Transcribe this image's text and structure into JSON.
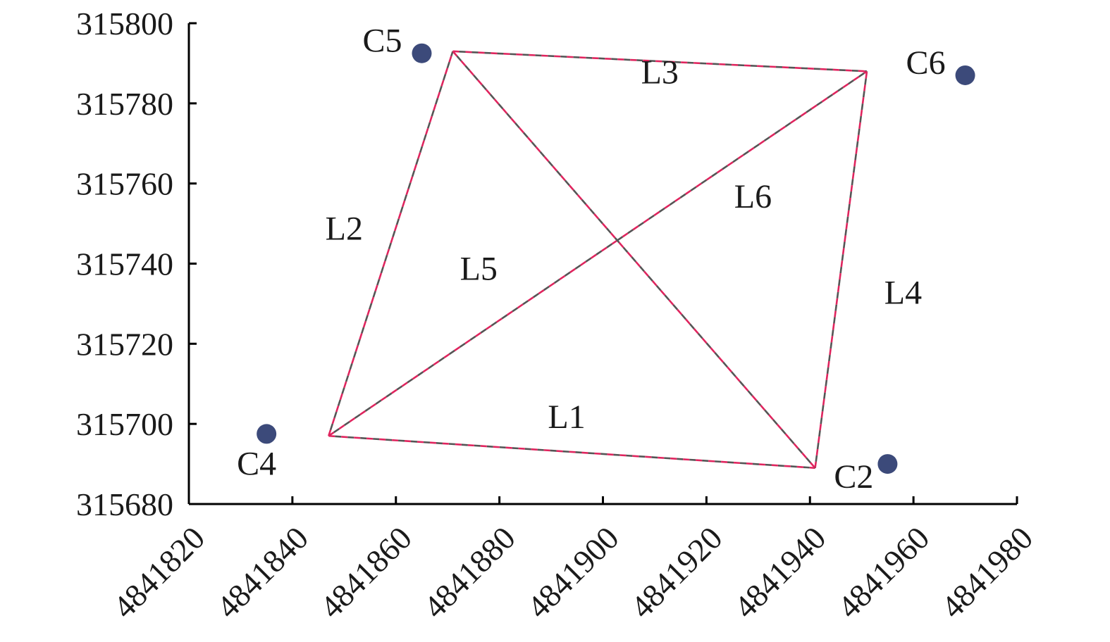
{
  "chart_data": {
    "type": "scatter",
    "title": "",
    "xlabel": "",
    "ylabel": "",
    "xlim": [
      4841820,
      4841980
    ],
    "ylim": [
      315680,
      315800
    ],
    "x_ticks": [
      {
        "value": 4841820,
        "label": "4841820"
      },
      {
        "value": 4841840,
        "label": "4841840"
      },
      {
        "value": 4841860,
        "label": "4841860"
      },
      {
        "value": 4841880,
        "label": "4841880"
      },
      {
        "value": 4841900,
        "label": "4841900"
      },
      {
        "value": 4841920,
        "label": "4841920"
      },
      {
        "value": 4841940,
        "label": "4841940"
      },
      {
        "value": 4841960,
        "label": "4841960"
      },
      {
        "value": 4841980,
        "label": "4841980"
      }
    ],
    "y_ticks": [
      {
        "value": 315680,
        "label": "315680"
      },
      {
        "value": 315700,
        "label": "315700"
      },
      {
        "value": 315720,
        "label": "315720"
      },
      {
        "value": 315740,
        "label": "315740"
      },
      {
        "value": 315760,
        "label": "315760"
      },
      {
        "value": 315780,
        "label": "315780"
      },
      {
        "value": 315800,
        "label": "315800"
      }
    ],
    "grid": false,
    "points": [
      {
        "label": "C5",
        "x": 4841865,
        "y": 315792.5,
        "label_position": "left"
      },
      {
        "label": "C6",
        "x": 4841970,
        "y": 315787,
        "label_position": "left"
      },
      {
        "label": "C4",
        "x": 4841835,
        "y": 315697.5,
        "label_position": "below"
      },
      {
        "label": "C2",
        "x": 4841955,
        "y": 315690,
        "label_position": "below-left"
      }
    ],
    "segments": [
      {
        "label": "L1",
        "from": [
          4841847,
          315697
        ],
        "to": [
          4841941,
          315689
        ],
        "label_at": [
          4841893,
          315699
        ]
      },
      {
        "label": "L2",
        "from": [
          4841847,
          315697
        ],
        "to": [
          4841871,
          315793
        ],
        "label_at": [
          4841850,
          315746
        ]
      },
      {
        "label": "L3",
        "from": [
          4841871,
          315793
        ],
        "to": [
          4841951,
          315788
        ],
        "label_at": [
          4841911,
          315785
        ]
      },
      {
        "label": "L4",
        "from": [
          4841941,
          315689
        ],
        "to": [
          4841951,
          315788
        ],
        "label_at": [
          4841958,
          315730
        ]
      },
      {
        "label": "L5",
        "from": [
          4841847,
          315697
        ],
        "to": [
          4841951,
          315788
        ],
        "label_at": [
          4841876,
          315736
        ]
      },
      {
        "label": "L6",
        "from": [
          4841871,
          315793
        ],
        "to": [
          4841941,
          315689
        ],
        "label_at": [
          4841929,
          315754
        ]
      }
    ],
    "colors": {
      "point": "#3c4a7a",
      "segment_dash_primary": "#e0245e",
      "segment_dash_secondary": "#555555",
      "axis": "#000000"
    }
  }
}
